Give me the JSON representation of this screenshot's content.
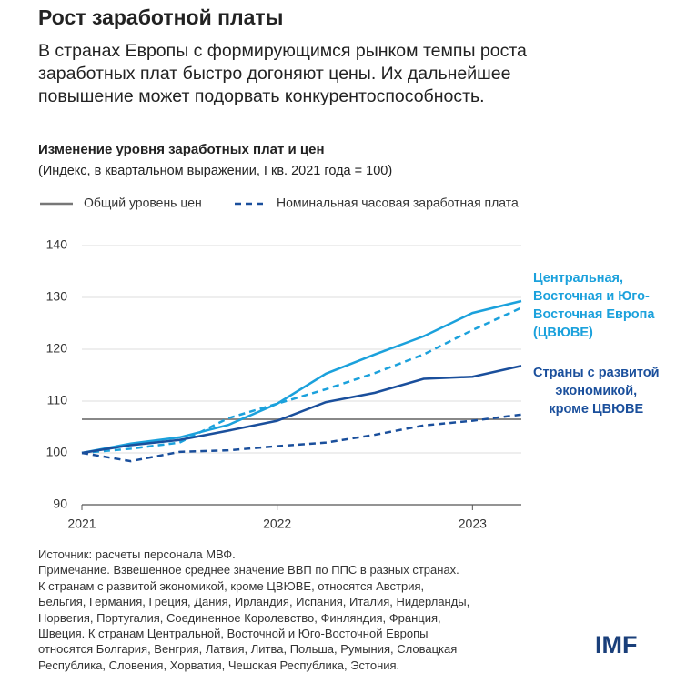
{
  "header": {
    "title": "Рост заработной платы",
    "subtitle": "В странах Европы с формирующимся рынком темпы роста\nзаработных плат быстро догоняют цены. Их дальнейшее\nповышение может подорвать конкурентоспособность."
  },
  "chart_data": {
    "type": "line",
    "title": "Изменение уровня заработных плат и цен",
    "subtitle": "(Индекс, в квартальном выражении, I кв. 2021 года = 100)",
    "legend": [
      "Общий уровень цен",
      "Номинальная часовая заработная плата"
    ],
    "x": [
      2021,
      2021.25,
      2021.5,
      2021.75,
      2022,
      2022.25,
      2022.5,
      2022.75,
      2023,
      2023.25
    ],
    "series": [
      {
        "name": "Центральная,\nВосточная и Юго-\nВосточная Европа\n(ЦВЮВЕ)",
        "color": "#1ba1dc",
        "prices": [
          100,
          101.8,
          103,
          105.4,
          109.5,
          115.3,
          119,
          122.5,
          127,
          129.3
        ],
        "wages": [
          100,
          100.8,
          102,
          106.7,
          109.5,
          112.3,
          115.4,
          119,
          123.7,
          128
        ]
      },
      {
        "name": "Страны с развитой\nэкономикой,\nкроме ЦВЮВЕ",
        "color": "#1a4f9c",
        "prices": [
          100,
          101.5,
          102.5,
          104.3,
          106.2,
          109.8,
          111.6,
          114.3,
          114.7,
          116.8
        ],
        "wages": [
          100,
          98.4,
          100.2,
          100.5,
          101.3,
          102,
          103.5,
          105.3,
          106.2,
          107.4
        ]
      }
    ],
    "reference_line": 106.5,
    "xlim": [
      2021,
      2023.25
    ],
    "xticks": [
      2021,
      2022,
      2023
    ],
    "ylim": [
      90,
      140
    ],
    "yticks": [
      90,
      100,
      110,
      120,
      130,
      140
    ],
    "grid": true
  },
  "footer": {
    "notes": "Источник: расчеты персонала МВФ.\nПримечание. Взвешенное среднее значение ВВП по ППС в разных странах.\nК странам с развитой экономикой, кроме ЦВЮВЕ, относятся Австрия,\nБельгия, Германия, Греция, Дания, Ирландия, Испания, Италия, Нидерланды,\nНорвегия, Португалия, Соединенное Королевство, Финляндия, Франция,\nШвеция. К странам Центральной, Восточной и Юго-Восточной Европы\nотносятся Болгария, Венгрия, Латвия, Литва, Польша, Румыния, Словацкая\nРеспублика, Словения, Хорватия, Чешская Республика, Эстония.",
    "logo": "IMF"
  }
}
